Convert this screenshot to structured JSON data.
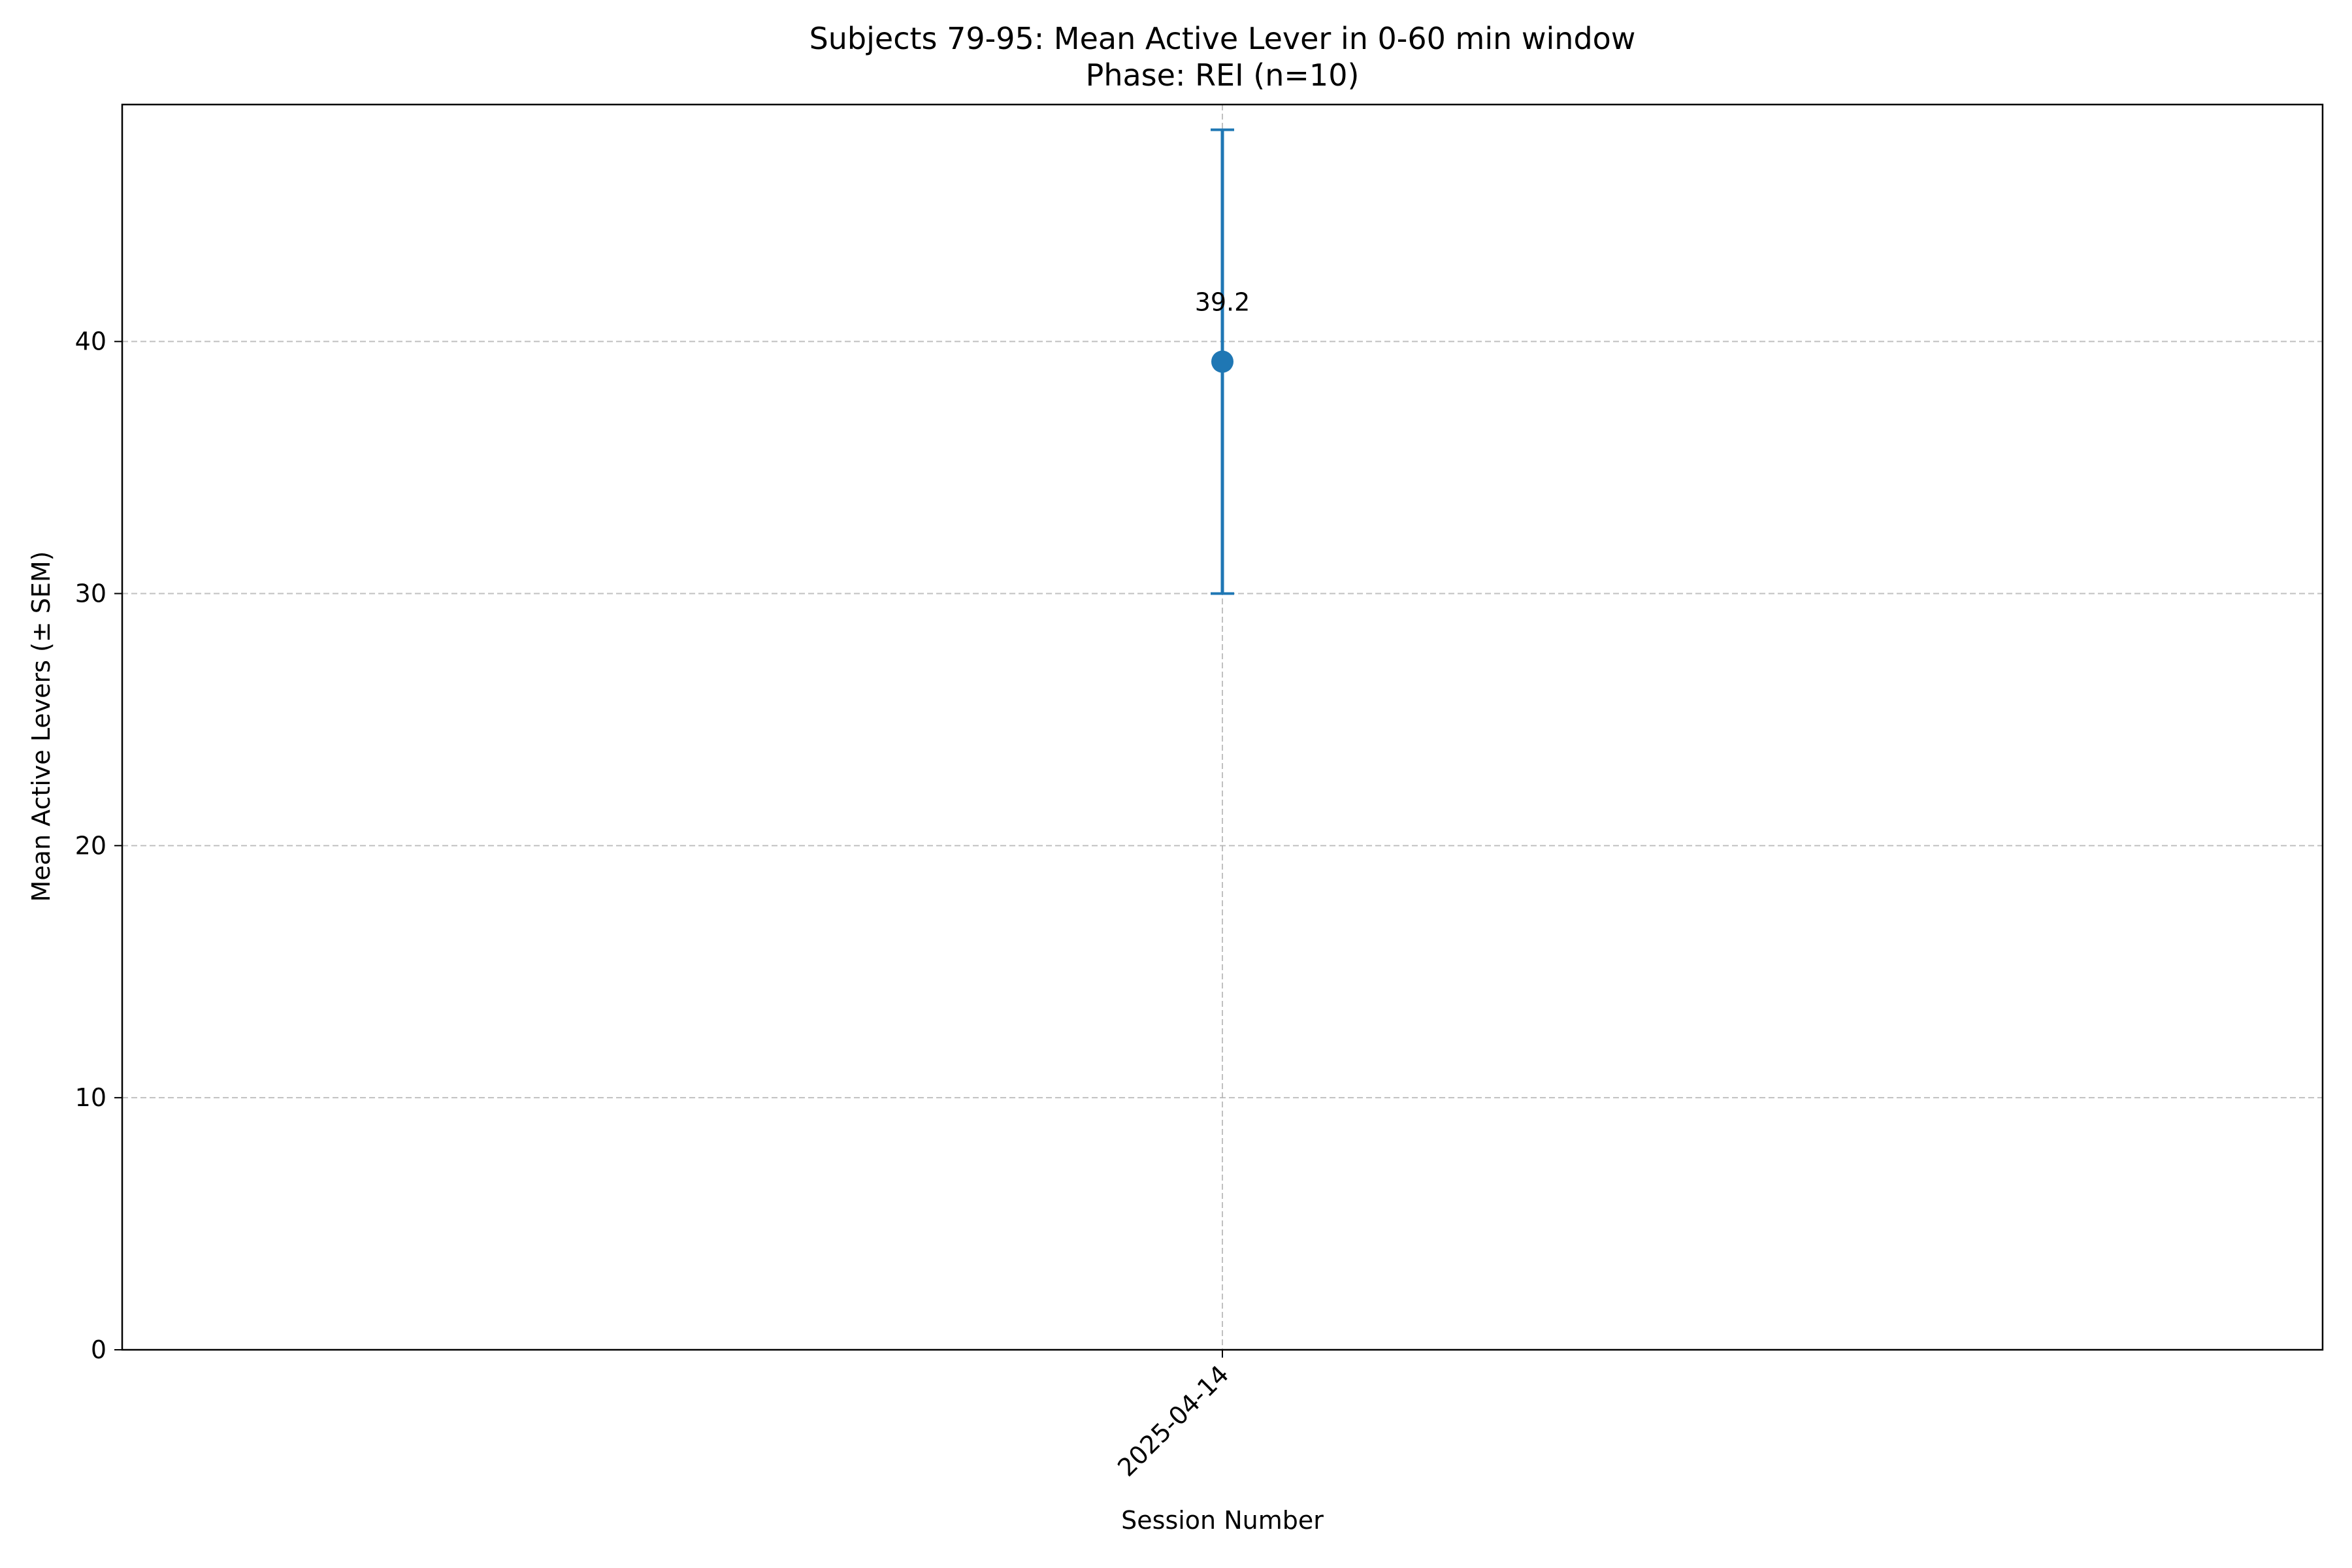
{
  "chart_data": {
    "type": "scatter",
    "title": "Subjects 79-95: Mean Active Lever in 0-60 min window",
    "subtitle": "Phase: REI (n=10)",
    "xlabel": "Session Number",
    "ylabel": "Mean Active Levers (± SEM)",
    "categories": [
      "2025-04-14"
    ],
    "series": [
      {
        "values": [
          39.2
        ],
        "errors": [
          9.2
        ],
        "color": "#1f77b4"
      }
    ],
    "data_labels": [
      "39.2"
    ],
    "yticks": [
      0,
      10,
      20,
      30,
      40
    ],
    "ytick_labels": [
      "0",
      "10",
      "20",
      "30",
      "40"
    ],
    "ylim": [
      0,
      49.4
    ],
    "grid": true,
    "grid_color": "#b0b0b0",
    "legend": "none"
  }
}
